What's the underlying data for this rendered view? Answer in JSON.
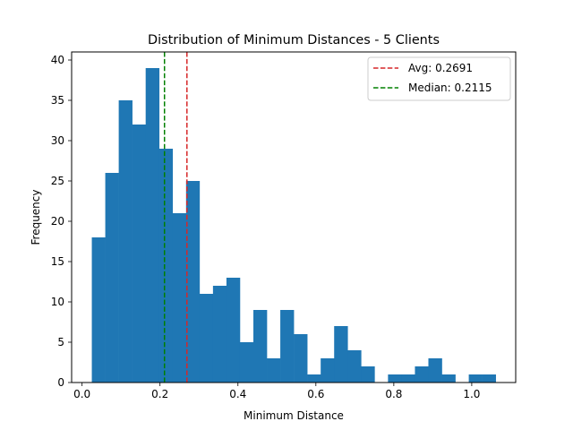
{
  "chart_data": {
    "type": "bar",
    "title": "Distribution of Minimum Distances - 5 Clients",
    "xlabel": "Minimum Distance",
    "ylabel": "Frequency",
    "xlim": [
      -0.0268,
      1.1128
    ],
    "ylim": [
      0,
      41
    ],
    "xticks": [
      "0.0",
      "0.2",
      "0.4",
      "0.6",
      "0.8",
      "1.0"
    ],
    "xtick_values": [
      0.0,
      0.2,
      0.4,
      0.6,
      0.8,
      1.0
    ],
    "yticks": [
      "0",
      "5",
      "10",
      "15",
      "20",
      "25",
      "30",
      "35",
      "40"
    ],
    "ytick_values": [
      0,
      5,
      10,
      15,
      20,
      25,
      30,
      35,
      40
    ],
    "grid": false,
    "legend_position": "top-right",
    "bar_color": "#1f77b4",
    "bins": {
      "start": 0.025,
      "width": 0.03455,
      "counts": [
        18,
        26,
        35,
        32,
        39,
        29,
        21,
        25,
        11,
        12,
        13,
        5,
        9,
        3,
        9,
        6,
        1,
        3,
        7,
        4,
        2,
        0,
        1,
        1,
        2,
        3,
        1,
        0,
        1,
        1
      ]
    },
    "reference_lines": [
      {
        "label": "Avg: 0.2691",
        "x": 0.2691,
        "color": "#d62728",
        "style": "dashed"
      },
      {
        "label": "Median: 0.2115",
        "x": 0.2115,
        "color": "#008000",
        "style": "dashed"
      }
    ]
  }
}
